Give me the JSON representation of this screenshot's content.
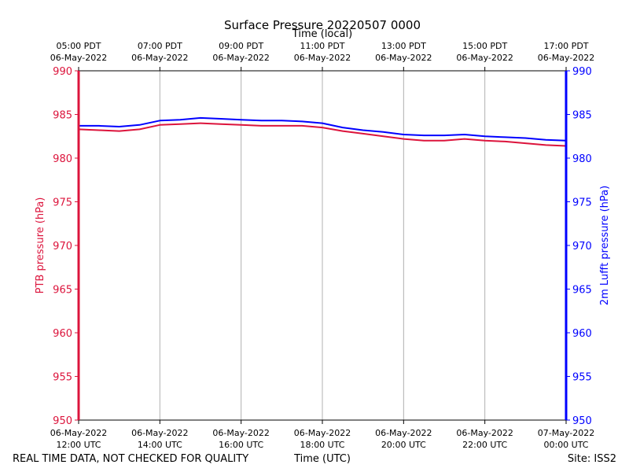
{
  "chart_data": {
    "type": "line",
    "title": "Surface Pressure 20220507 0000",
    "top_axis_label": "Time (local)",
    "xlabel": "Time (UTC)",
    "ylabel_left": "PTB pressure (hPa)",
    "ylabel_right": "2m Lufft pressure (hPa)",
    "x_hours_utc": [
      12,
      14,
      16,
      18,
      20,
      22,
      24
    ],
    "xlim": [
      12,
      24
    ],
    "ylim": [
      950,
      990
    ],
    "yticks": [
      950,
      955,
      960,
      965,
      970,
      975,
      980,
      985,
      990
    ],
    "bottom_ticks": [
      {
        "date": "06-May-2022",
        "time": "12:00 UTC"
      },
      {
        "date": "06-May-2022",
        "time": "14:00 UTC"
      },
      {
        "date": "06-May-2022",
        "time": "16:00 UTC"
      },
      {
        "date": "06-May-2022",
        "time": "18:00 UTC"
      },
      {
        "date": "06-May-2022",
        "time": "20:00 UTC"
      },
      {
        "date": "06-May-2022",
        "time": "22:00 UTC"
      },
      {
        "date": "07-May-2022",
        "time": "00:00 UTC"
      }
    ],
    "top_ticks": [
      {
        "time": "05:00 PDT",
        "date": "06-May-2022"
      },
      {
        "time": "07:00 PDT",
        "date": "06-May-2022"
      },
      {
        "time": "09:00 PDT",
        "date": "06-May-2022"
      },
      {
        "time": "11:00 PDT",
        "date": "06-May-2022"
      },
      {
        "time": "13:00 PDT",
        "date": "06-May-2022"
      },
      {
        "time": "15:00 PDT",
        "date": "06-May-2022"
      },
      {
        "time": "17:00 PDT",
        "date": "06-May-2022"
      }
    ],
    "grid": "vertical",
    "series": [
      {
        "axis": "left",
        "color": "#dc143c",
        "x": [
          12.0,
          12.5,
          13.0,
          13.5,
          14.0,
          14.5,
          15.0,
          15.5,
          16.0,
          16.5,
          17.0,
          17.5,
          18.0,
          18.5,
          19.0,
          19.5,
          20.0,
          20.5,
          21.0,
          21.5,
          22.0,
          22.5,
          23.0,
          23.5,
          24.0
        ],
        "values": [
          983.3,
          983.2,
          983.1,
          983.3,
          983.8,
          983.9,
          984.0,
          983.9,
          983.8,
          983.7,
          983.7,
          983.7,
          983.5,
          983.1,
          982.8,
          982.5,
          982.2,
          982.0,
          982.0,
          982.2,
          982.0,
          981.9,
          981.7,
          981.5,
          981.4
        ]
      },
      {
        "axis": "right",
        "color": "#0000ff",
        "x": [
          12.0,
          12.5,
          13.0,
          13.5,
          14.0,
          14.5,
          15.0,
          15.5,
          16.0,
          16.5,
          17.0,
          17.5,
          18.0,
          18.5,
          19.0,
          19.5,
          20.0,
          20.5,
          21.0,
          21.5,
          22.0,
          22.5,
          23.0,
          23.5,
          24.0
        ],
        "values": [
          983.7,
          983.7,
          983.6,
          983.8,
          984.3,
          984.4,
          984.6,
          984.5,
          984.4,
          984.3,
          984.3,
          984.2,
          984.0,
          983.5,
          983.2,
          983.0,
          982.7,
          982.6,
          982.6,
          982.7,
          982.5,
          982.4,
          982.3,
          982.1,
          982.0
        ]
      }
    ]
  },
  "footer": {
    "note": "REAL TIME DATA, NOT CHECKED FOR QUALITY",
    "site": "Site: ISS2"
  }
}
